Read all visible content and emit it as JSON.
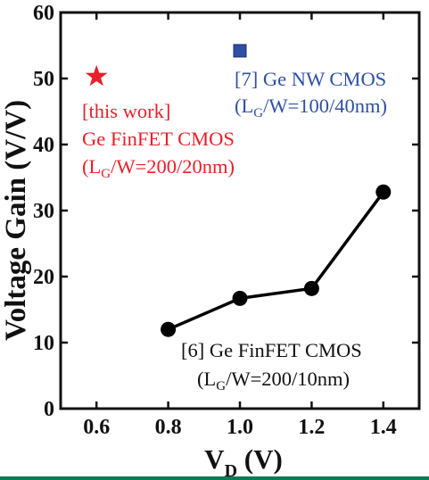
{
  "chart_data": {
    "type": "scatter",
    "xlabel_main": "V",
    "xlabel_sub": "D",
    "xlabel_unit": " (V)",
    "ylabel": "Voltage Gain (V/V)",
    "xlim": [
      0.5,
      1.5
    ],
    "ylim": [
      0,
      60
    ],
    "xticks": [
      "0.6",
      "0.8",
      "1.0",
      "1.2",
      "1.4"
    ],
    "yticks": [
      "0",
      "10",
      "20",
      "30",
      "40",
      "50",
      "60"
    ],
    "grid": false,
    "series": [
      {
        "name": "[6] Ge FinFET CMOS",
        "marker": "circle",
        "line": true,
        "color": "#000000",
        "x": [
          0.8,
          1.0,
          1.2,
          1.4
        ],
        "y": [
          12,
          16.7,
          18.2,
          32.8
        ]
      },
      {
        "name": "[7] Ge NW CMOS",
        "marker": "square",
        "line": false,
        "color": "#2e4fa3",
        "x": [
          1.0
        ],
        "y": [
          54.2
        ]
      },
      {
        "name": "[this work] Ge FinFET CMOS",
        "marker": "star",
        "line": false,
        "color": "#e8202a",
        "x": [
          0.6
        ],
        "y": [
          50.3
        ]
      }
    ],
    "annotations": {
      "this_work": {
        "color": "#e8202a",
        "line1": "[this work]",
        "line2": "Ge FinFET CMOS",
        "l3_pre": "(L",
        "l3_sub": "G",
        "l3_post": "/W=200/20nm)"
      },
      "ref7": {
        "color": "#2e4fa3",
        "line1": "[7] Ge NW CMOS",
        "l2_pre": "(L",
        "l2_sub": "G",
        "l2_post": "/W=100/40nm)"
      },
      "ref6": {
        "color": "#111111",
        "line1": "[6] Ge FinFET CMOS",
        "l2_pre": "(L",
        "l2_sub": "G",
        "l2_post": "/W=200/10nm)"
      }
    }
  }
}
